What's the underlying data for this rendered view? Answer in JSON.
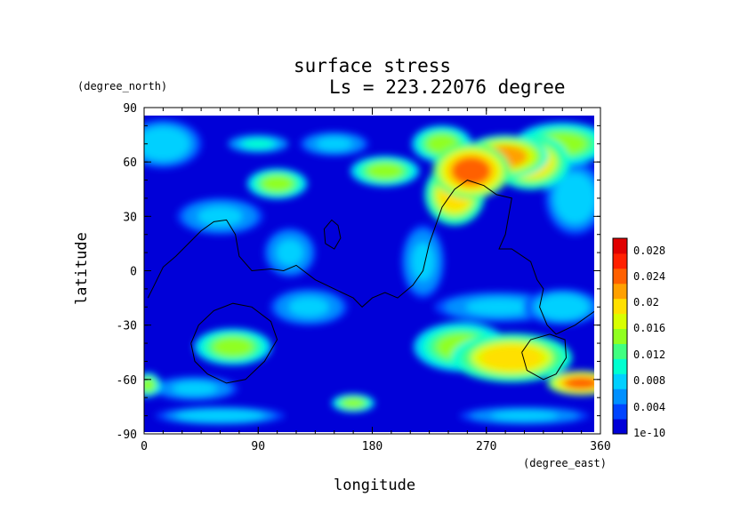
{
  "chart_data": {
    "type": "heatmap",
    "title": "surface stress",
    "subtitle": "Ls = 223.22076 degree",
    "xlabel": "longitude",
    "ylabel": "latitude",
    "x_unit": "(degree_east)",
    "y_unit": "(degree_north)",
    "xlim": [
      0,
      360
    ],
    "ylim": [
      -90,
      90
    ],
    "x_ticks": [
      0,
      90,
      180,
      270,
      360
    ],
    "y_ticks": [
      90,
      60,
      30,
      0,
      -30,
      -60,
      -90
    ],
    "colorbar": {
      "labels": [
        "0.028",
        "0.024",
        "0.02",
        "0.016",
        "0.012",
        "0.008",
        "0.004",
        "1e-10"
      ],
      "colors": [
        "#0000d8",
        "#0044ff",
        "#0090ff",
        "#00d0ff",
        "#00ffd0",
        "#40ff80",
        "#90ff20",
        "#d8ff00",
        "#ffe000",
        "#ffa000",
        "#ff6000",
        "#ff2000",
        "#e00000"
      ],
      "min": 0,
      "max": 0.03
    },
    "hotspots": [
      {
        "lon": 258,
        "lat": 55,
        "value": 0.024,
        "rlon": 18,
        "rlat": 9
      },
      {
        "lon": 245,
        "lat": 42,
        "value": 0.02,
        "rlon": 14,
        "rlat": 10
      },
      {
        "lon": 285,
        "lat": 63,
        "value": 0.022,
        "rlon": 20,
        "rlat": 7
      },
      {
        "lon": 305,
        "lat": 60,
        "value": 0.02,
        "rlon": 18,
        "rlat": 9
      },
      {
        "lon": 330,
        "lat": 70,
        "value": 0.016,
        "rlon": 22,
        "rlat": 7
      },
      {
        "lon": 235,
        "lat": 70,
        "value": 0.014,
        "rlon": 14,
        "rlat": 6
      },
      {
        "lon": 190,
        "lat": 55,
        "value": 0.016,
        "rlon": 16,
        "rlat": 5
      },
      {
        "lon": 105,
        "lat": 48,
        "value": 0.014,
        "rlon": 14,
        "rlat": 5
      },
      {
        "lon": 90,
        "lat": 70,
        "value": 0.01,
        "rlon": 14,
        "rlat": 3
      },
      {
        "lon": 150,
        "lat": 70,
        "value": 0.008,
        "rlon": 16,
        "rlat": 4
      },
      {
        "lon": 15,
        "lat": 70,
        "value": 0.009,
        "rlon": 18,
        "rlat": 8
      },
      {
        "lon": 290,
        "lat": -48,
        "value": 0.02,
        "rlon": 28,
        "rlat": 8
      },
      {
        "lon": 250,
        "lat": -42,
        "value": 0.016,
        "rlon": 22,
        "rlat": 8
      },
      {
        "lon": 345,
        "lat": -62,
        "value": 0.024,
        "rlon": 16,
        "rlat": 4
      },
      {
        "lon": 70,
        "lat": -42,
        "value": 0.016,
        "rlon": 18,
        "rlat": 6
      },
      {
        "lon": 3,
        "lat": -63,
        "value": 0.014,
        "rlon": 6,
        "rlat": 4
      },
      {
        "lon": 165,
        "lat": -73,
        "value": 0.014,
        "rlon": 10,
        "rlat": 3
      },
      {
        "lon": 280,
        "lat": -20,
        "value": 0.008,
        "rlon": 30,
        "rlat": 5
      },
      {
        "lon": 330,
        "lat": -20,
        "value": 0.009,
        "rlon": 18,
        "rlat": 6
      },
      {
        "lon": 60,
        "lat": -80,
        "value": 0.009,
        "rlon": 30,
        "rlat": 3
      },
      {
        "lon": 300,
        "lat": -80,
        "value": 0.008,
        "rlon": 30,
        "rlat": 3
      },
      {
        "lon": 115,
        "lat": 10,
        "value": 0.008,
        "rlon": 12,
        "rlat": 8
      },
      {
        "lon": 220,
        "lat": 5,
        "value": 0.008,
        "rlon": 10,
        "rlat": 12
      },
      {
        "lon": 130,
        "lat": -20,
        "value": 0.007,
        "rlon": 18,
        "rlat": 6
      },
      {
        "lon": 60,
        "lat": 30,
        "value": 0.007,
        "rlon": 20,
        "rlat": 6
      },
      {
        "lon": 340,
        "lat": 40,
        "value": 0.009,
        "rlon": 14,
        "rlat": 12
      },
      {
        "lon": 40,
        "lat": -65,
        "value": 0.007,
        "rlon": 20,
        "rlat": 4
      }
    ],
    "contours": [
      [
        [
          3,
          -15
        ],
        [
          8,
          -8
        ],
        [
          15,
          2
        ],
        [
          25,
          8
        ],
        [
          35,
          15
        ],
        [
          45,
          22
        ],
        [
          55,
          27
        ],
        [
          65,
          28
        ],
        [
          72,
          20
        ],
        [
          75,
          8
        ],
        [
          85,
          0
        ],
        [
          100,
          1
        ],
        [
          110,
          0
        ],
        [
          120,
          3
        ],
        [
          135,
          -5
        ],
        [
          150,
          -10
        ],
        [
          165,
          -15
        ],
        [
          172,
          -20
        ],
        [
          180,
          -15
        ],
        [
          190,
          -12
        ],
        [
          200,
          -15
        ],
        [
          212,
          -8
        ],
        [
          220,
          0
        ],
        [
          225,
          15
        ],
        [
          230,
          25
        ],
        [
          235,
          35
        ],
        [
          245,
          45
        ],
        [
          255,
          50
        ],
        [
          268,
          47
        ],
        [
          278,
          42
        ],
        [
          290,
          40
        ],
        [
          285,
          20
        ],
        [
          280,
          12
        ],
        [
          290,
          12
        ],
        [
          305,
          5
        ],
        [
          310,
          -5
        ],
        [
          315,
          -10
        ],
        [
          312,
          -20
        ],
        [
          318,
          -30
        ],
        [
          325,
          -35
        ],
        [
          340,
          -30
        ],
        [
          350,
          -25
        ],
        [
          360,
          -20
        ]
      ],
      [
        [
          37,
          -40
        ],
        [
          40,
          -50
        ],
        [
          50,
          -57
        ],
        [
          65,
          -62
        ],
        [
          80,
          -60
        ],
        [
          95,
          -50
        ],
        [
          105,
          -38
        ],
        [
          100,
          -28
        ],
        [
          85,
          -20
        ],
        [
          70,
          -18
        ],
        [
          55,
          -22
        ],
        [
          43,
          -30
        ],
        [
          37,
          -40
        ]
      ],
      [
        [
          298,
          -45
        ],
        [
          302,
          -55
        ],
        [
          315,
          -60
        ],
        [
          325,
          -57
        ],
        [
          333,
          -48
        ],
        [
          332,
          -38
        ],
        [
          320,
          -35
        ],
        [
          305,
          -38
        ],
        [
          298,
          -45
        ]
      ],
      [
        [
          143,
          15
        ],
        [
          142,
          23
        ],
        [
          148,
          28
        ],
        [
          153,
          25
        ],
        [
          155,
          18
        ],
        [
          150,
          12
        ],
        [
          143,
          15
        ]
      ]
    ]
  }
}
